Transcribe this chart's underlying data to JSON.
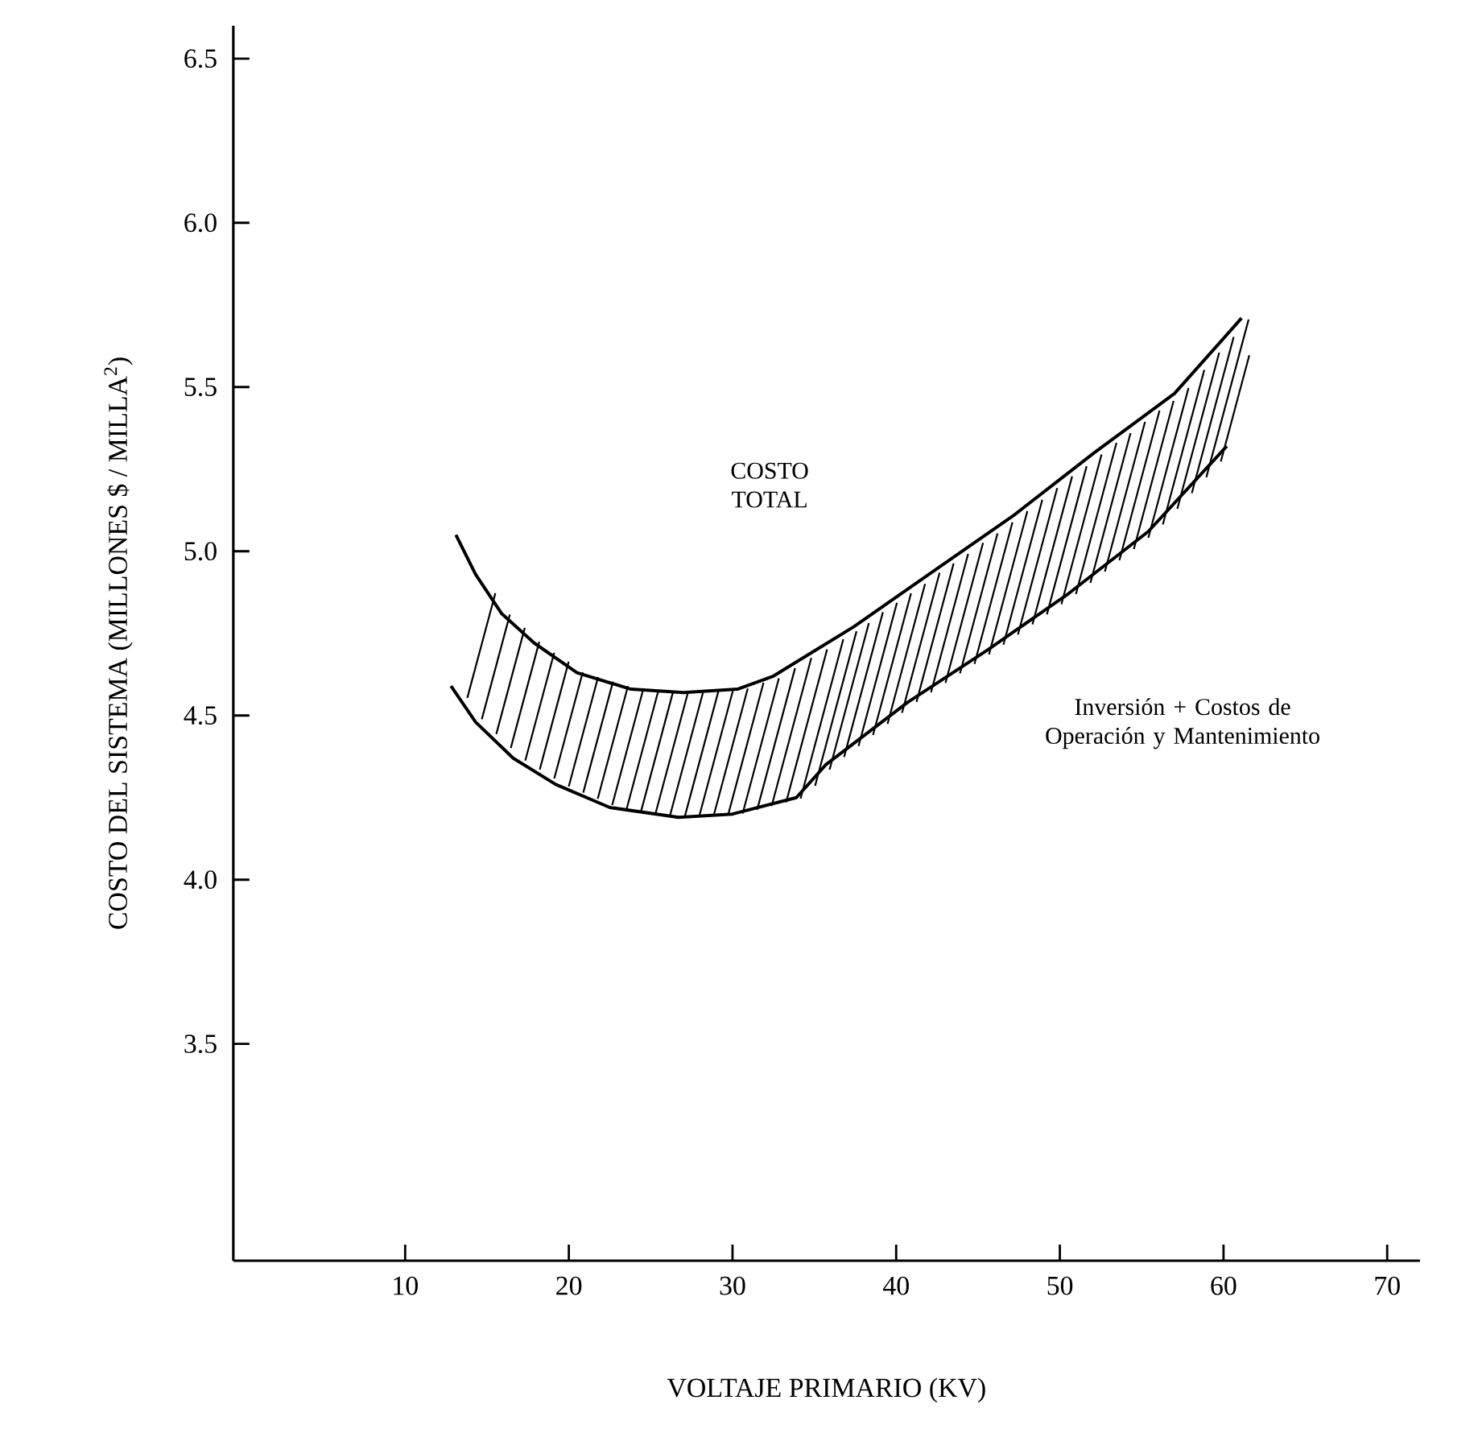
{
  "chart_data": {
    "type": "line",
    "xlabel": "VOLTAJE  PRIMARIO (KV)",
    "ylabel": "COSTO DEL SISTEMA (MILLONES $ / MILLA$^{2}$)",
    "xlim": [
      -0.5,
      72
    ],
    "ylim": [
      2.84,
      6.6
    ],
    "xticks": [
      10,
      20,
      30,
      40,
      50,
      60,
      70
    ],
    "yticks": [
      {
        "value": 3.5,
        "label": "3.5"
      },
      {
        "value": 4.0,
        "label": "4.0"
      },
      {
        "value": 4.5,
        "label": "4.5"
      },
      {
        "value": 5.0,
        "label": "5.0"
      },
      {
        "value": 5.5,
        "label": "5.5"
      },
      {
        "value": 6.0,
        "label": "6.0"
      },
      {
        "value": 6.5,
        "label": "6.5"
      }
    ],
    "grid": false,
    "marker": "none",
    "line_style": "solid",
    "series": [
      {
        "color": "#000000",
        "x": [
          13.1,
          14.3,
          15.9,
          17.9,
          20.5,
          23.8,
          27.0,
          30.3,
          32.5,
          37.4,
          42.3,
          47.2,
          52.1,
          57.0,
          61.1
        ],
        "values": [
          5.05,
          4.93,
          4.81,
          4.72,
          4.63,
          4.58,
          4.57,
          4.58,
          4.62,
          4.77,
          4.94,
          5.11,
          5.3,
          5.48,
          5.71
        ]
      },
      {
        "color": "#000000",
        "x": [
          12.8,
          14.3,
          16.6,
          19.2,
          22.5,
          26.7,
          30.0,
          33.9,
          35.7,
          40.7,
          45.6,
          50.5,
          55.4,
          60.2
        ],
        "values": [
          4.59,
          4.48,
          4.37,
          4.29,
          4.22,
          4.19,
          4.2,
          4.25,
          4.35,
          4.54,
          4.7,
          4.87,
          5.06,
          5.32
        ]
      }
    ],
    "annotations": [
      "COSTO TOTAL",
      "Inversión + Costos de Operación y Mantenimiento"
    ]
  }
}
